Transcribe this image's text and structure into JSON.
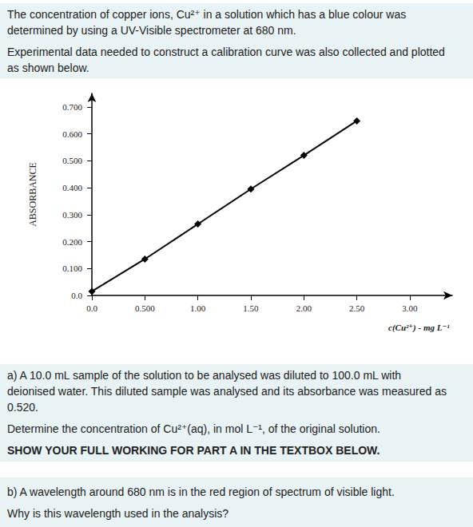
{
  "intro": [
    [
      "The concentration of copper ions, Cu²⁺ in a solution which has a blue colour was",
      "determined by using a UV-Visible spectrometer at 680 nm."
    ],
    [
      "Experimental data needed to construct a calibration curve was also collected and plotted",
      "as shown below."
    ]
  ],
  "chart_data": {
    "type": "line",
    "x_label": "c(Cu²⁺) - mg L⁻¹",
    "y_label": "ABSORBANCE",
    "x": [
      0,
      0.5,
      1.0,
      1.5,
      2.0,
      2.5
    ],
    "values": [
      0.015,
      0.135,
      0.265,
      0.395,
      0.52,
      0.648
    ],
    "color": "#000000",
    "marker": "diamond",
    "xlim": [
      0,
      3.4
    ],
    "ylim": [
      0,
      0.75
    ],
    "xticks": [
      {
        "value": 0,
        "label": "0.0"
      },
      {
        "value": 0.5,
        "label": "0.500"
      },
      {
        "value": 1,
        "label": "1.00"
      },
      {
        "value": 1.5,
        "label": "1.50"
      },
      {
        "value": 2,
        "label": "2.00"
      },
      {
        "value": 2.5,
        "label": "2.50"
      },
      {
        "value": 3,
        "label": "3.00"
      }
    ],
    "yticks": [
      {
        "value": 0,
        "label": "0.0"
      },
      {
        "value": 0.1,
        "label": "0.100"
      },
      {
        "value": 0.2,
        "label": "0.200"
      },
      {
        "value": 0.3,
        "label": "0.300"
      },
      {
        "value": 0.4,
        "label": "0.400"
      },
      {
        "value": 0.5,
        "label": "0.500"
      },
      {
        "value": 0.6,
        "label": "0.600"
      },
      {
        "value": 0.7,
        "label": "0.700"
      }
    ],
    "grid": false
  },
  "part_a": {
    "text": [
      [
        "a) A 10.0 mL sample of the solution to be analysed was diluted to 100.0 mL with",
        "deionised water. This diluted sample was analysed and its absorbance was measured as",
        "0.520."
      ],
      [
        "Determine the concentration of Cu²⁺(aq), in mol L⁻¹, of the original solution."
      ]
    ],
    "instruction": "SHOW YOUR FULL WORKING FOR PART A IN THE TEXTBOX BELOW."
  },
  "part_b": {
    "text": [
      [
        "b) A wavelength around 680 nm is in the red region of spectrum of visible light."
      ],
      [
        "Why is this wavelength used in the analysis?"
      ]
    ]
  }
}
